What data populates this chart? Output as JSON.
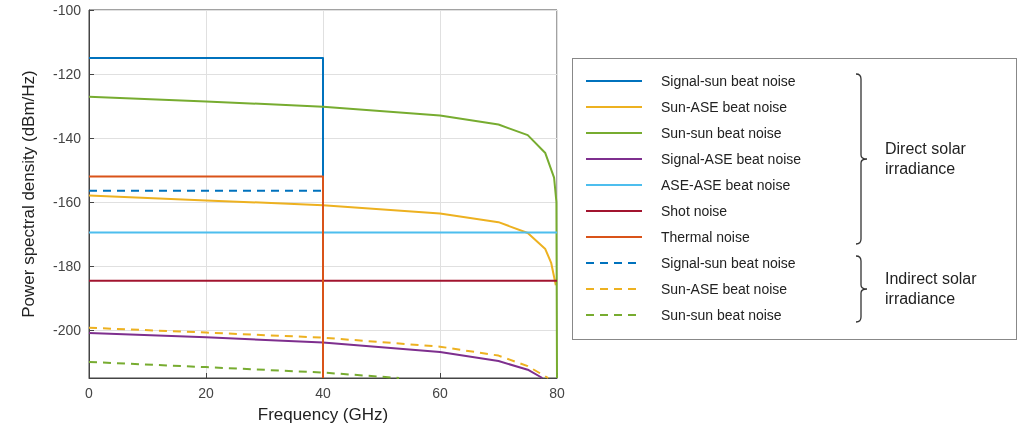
{
  "chart_data": {
    "type": "line",
    "xlabel": "Frequency (GHz)",
    "ylabel": "Power spectral density (dBm/Hz)",
    "xlim": [
      0,
      80
    ],
    "xticks": [
      0,
      20,
      40,
      60,
      80
    ],
    "ylim": [
      -215,
      -100
    ],
    "yticks": [
      -100,
      -120,
      -140,
      -160,
      -180,
      -200
    ],
    "grid": true,
    "legend": "right",
    "marker": "none",
    "annotations": [
      "Direct solar irradiance",
      "Indirect solar irradiance"
    ],
    "series": [
      {
        "name": "Signal-sun beat noise",
        "color": "#0072bd",
        "line_style": "solid",
        "x": [
          0,
          40,
          40
        ],
        "values": [
          -115,
          -115,
          -215
        ]
      },
      {
        "name": "Sun-ASE beat noise",
        "color": "#edb120",
        "line_style": "solid",
        "x": [
          0,
          20,
          40,
          60,
          70,
          75,
          78,
          79,
          79.8
        ],
        "values": [
          -158,
          -159.5,
          -161,
          -163.6,
          -166.3,
          -169.7,
          -174.7,
          -179,
          -186
        ]
      },
      {
        "name": "Sun-sun beat noise",
        "color": "#77ac30",
        "line_style": "solid",
        "x": [
          0,
          20,
          40,
          60,
          70,
          75,
          78,
          79.5,
          79.9,
          80
        ],
        "values": [
          -127.1,
          -128.6,
          -130.2,
          -133,
          -135.8,
          -139.1,
          -144.7,
          -152.4,
          -160,
          -215
        ]
      },
      {
        "name": "Signal-ASE beat noise",
        "color": "#7e2f8e",
        "line_style": "solid",
        "x": [
          0,
          20,
          40,
          60,
          70,
          75,
          77.5
        ],
        "values": [
          -200.9,
          -202.3,
          -203.9,
          -206.9,
          -209.7,
          -212.4,
          -215
        ]
      },
      {
        "name": "ASE-ASE beat noise",
        "color": "#4dbeee",
        "line_style": "solid",
        "x": [
          0,
          80
        ],
        "values": [
          -169.5,
          -169.5
        ]
      },
      {
        "name": "Shot noise",
        "color": "#a2142f",
        "line_style": "solid",
        "x": [
          0,
          80
        ],
        "values": [
          -184.6,
          -184.6
        ]
      },
      {
        "name": "Thermal noise",
        "color": "#d95319",
        "line_style": "solid",
        "x": [
          0,
          40,
          40
        ],
        "values": [
          -152,
          -152,
          -215
        ]
      },
      {
        "name": "Signal-sun beat noise",
        "color": "#0072bd",
        "line_style": "dashed",
        "x": [
          0,
          40
        ],
        "values": [
          -156.5,
          -156.5
        ]
      },
      {
        "name": "Sun-ASE beat noise",
        "color": "#edb120",
        "line_style": "dashed",
        "x": [
          0,
          20,
          40,
          60,
          70,
          75,
          78.5
        ],
        "values": [
          -199.3,
          -200.8,
          -202.4,
          -205.2,
          -208,
          -211.3,
          -215
        ]
      },
      {
        "name": "Sun-sun beat noise",
        "color": "#77ac30",
        "line_style": "dashed",
        "x": [
          0,
          20,
          40,
          53
        ],
        "values": [
          -210,
          -211.6,
          -213.3,
          -215
        ]
      }
    ]
  }
}
